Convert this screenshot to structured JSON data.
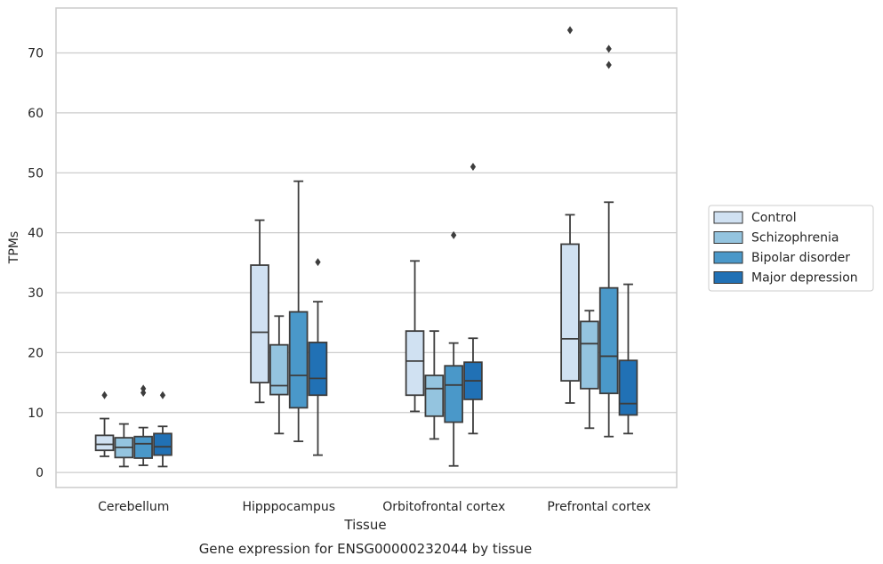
{
  "chart_data": {
    "type": "box",
    "title": "",
    "caption": "Gene expression for ENSG00000232044 by tissue",
    "xlabel": "Tissue",
    "ylabel": "TPMs",
    "ylim": [
      -2.5,
      77.5
    ],
    "yticks": [
      0,
      10,
      20,
      30,
      40,
      50,
      60,
      70
    ],
    "grid": "horizontal",
    "legend_position": "outside-right",
    "categories": [
      "Cerebellum",
      "Hipppocampus",
      "Orbitofrontal cortex",
      "Prefrontal cortex"
    ],
    "series": [
      {
        "name": "Control",
        "color": "#d0e1f2",
        "boxes": [
          {
            "whisker_low": 2.7,
            "q1": 3.7,
            "median": 4.7,
            "q3": 6.2,
            "whisker_high": 9.0,
            "outliers": [
              12.9
            ]
          },
          {
            "whisker_low": 11.7,
            "q1": 15.0,
            "median": 23.4,
            "q3": 34.6,
            "whisker_high": 42.1,
            "outliers": []
          },
          {
            "whisker_low": 10.2,
            "q1": 12.9,
            "median": 18.6,
            "q3": 23.6,
            "whisker_high": 35.3,
            "outliers": []
          },
          {
            "whisker_low": 11.6,
            "q1": 15.3,
            "median": 22.3,
            "q3": 38.1,
            "whisker_high": 43.0,
            "outliers": [
              73.8
            ]
          }
        ]
      },
      {
        "name": "Schizophrenia",
        "color": "#94c4df",
        "boxes": [
          {
            "whisker_low": 1.0,
            "q1": 2.5,
            "median": 4.2,
            "q3": 5.8,
            "whisker_high": 8.1,
            "outliers": []
          },
          {
            "whisker_low": 6.5,
            "q1": 13.0,
            "median": 14.5,
            "q3": 21.3,
            "whisker_high": 26.1,
            "outliers": []
          },
          {
            "whisker_low": 5.6,
            "q1": 9.4,
            "median": 14.0,
            "q3": 16.2,
            "whisker_high": 23.6,
            "outliers": []
          },
          {
            "whisker_low": 7.4,
            "q1": 14.0,
            "median": 21.5,
            "q3": 25.2,
            "whisker_high": 27.0,
            "outliers": []
          }
        ]
      },
      {
        "name": "Bipolar disorder",
        "color": "#4a98c9",
        "boxes": [
          {
            "whisker_low": 1.2,
            "q1": 2.4,
            "median": 4.8,
            "q3": 6.0,
            "whisker_high": 7.5,
            "outliers": [
              13.3,
              14.0
            ]
          },
          {
            "whisker_low": 5.2,
            "q1": 10.8,
            "median": 16.2,
            "q3": 26.8,
            "whisker_high": 48.6,
            "outliers": []
          },
          {
            "whisker_low": 1.1,
            "q1": 8.4,
            "median": 14.6,
            "q3": 17.8,
            "whisker_high": 21.6,
            "outliers": [
              39.6
            ]
          },
          {
            "whisker_low": 6.0,
            "q1": 13.2,
            "median": 19.4,
            "q3": 30.8,
            "whisker_high": 45.1,
            "outliers": [
              68.0,
              70.7
            ]
          }
        ]
      },
      {
        "name": "Major depression",
        "color": "#2171b5",
        "boxes": [
          {
            "whisker_low": 1.0,
            "q1": 2.9,
            "median": 4.3,
            "q3": 6.5,
            "whisker_high": 7.7,
            "outliers": [
              12.9
            ]
          },
          {
            "whisker_low": 2.9,
            "q1": 12.9,
            "median": 15.7,
            "q3": 21.7,
            "whisker_high": 28.5,
            "outliers": [
              35.1
            ]
          },
          {
            "whisker_low": 6.5,
            "q1": 12.2,
            "median": 15.3,
            "q3": 18.4,
            "whisker_high": 22.4,
            "outliers": [
              51.0
            ]
          },
          {
            "whisker_low": 6.5,
            "q1": 9.6,
            "median": 11.5,
            "q3": 18.7,
            "whisker_high": 31.4,
            "outliers": []
          }
        ]
      }
    ]
  }
}
